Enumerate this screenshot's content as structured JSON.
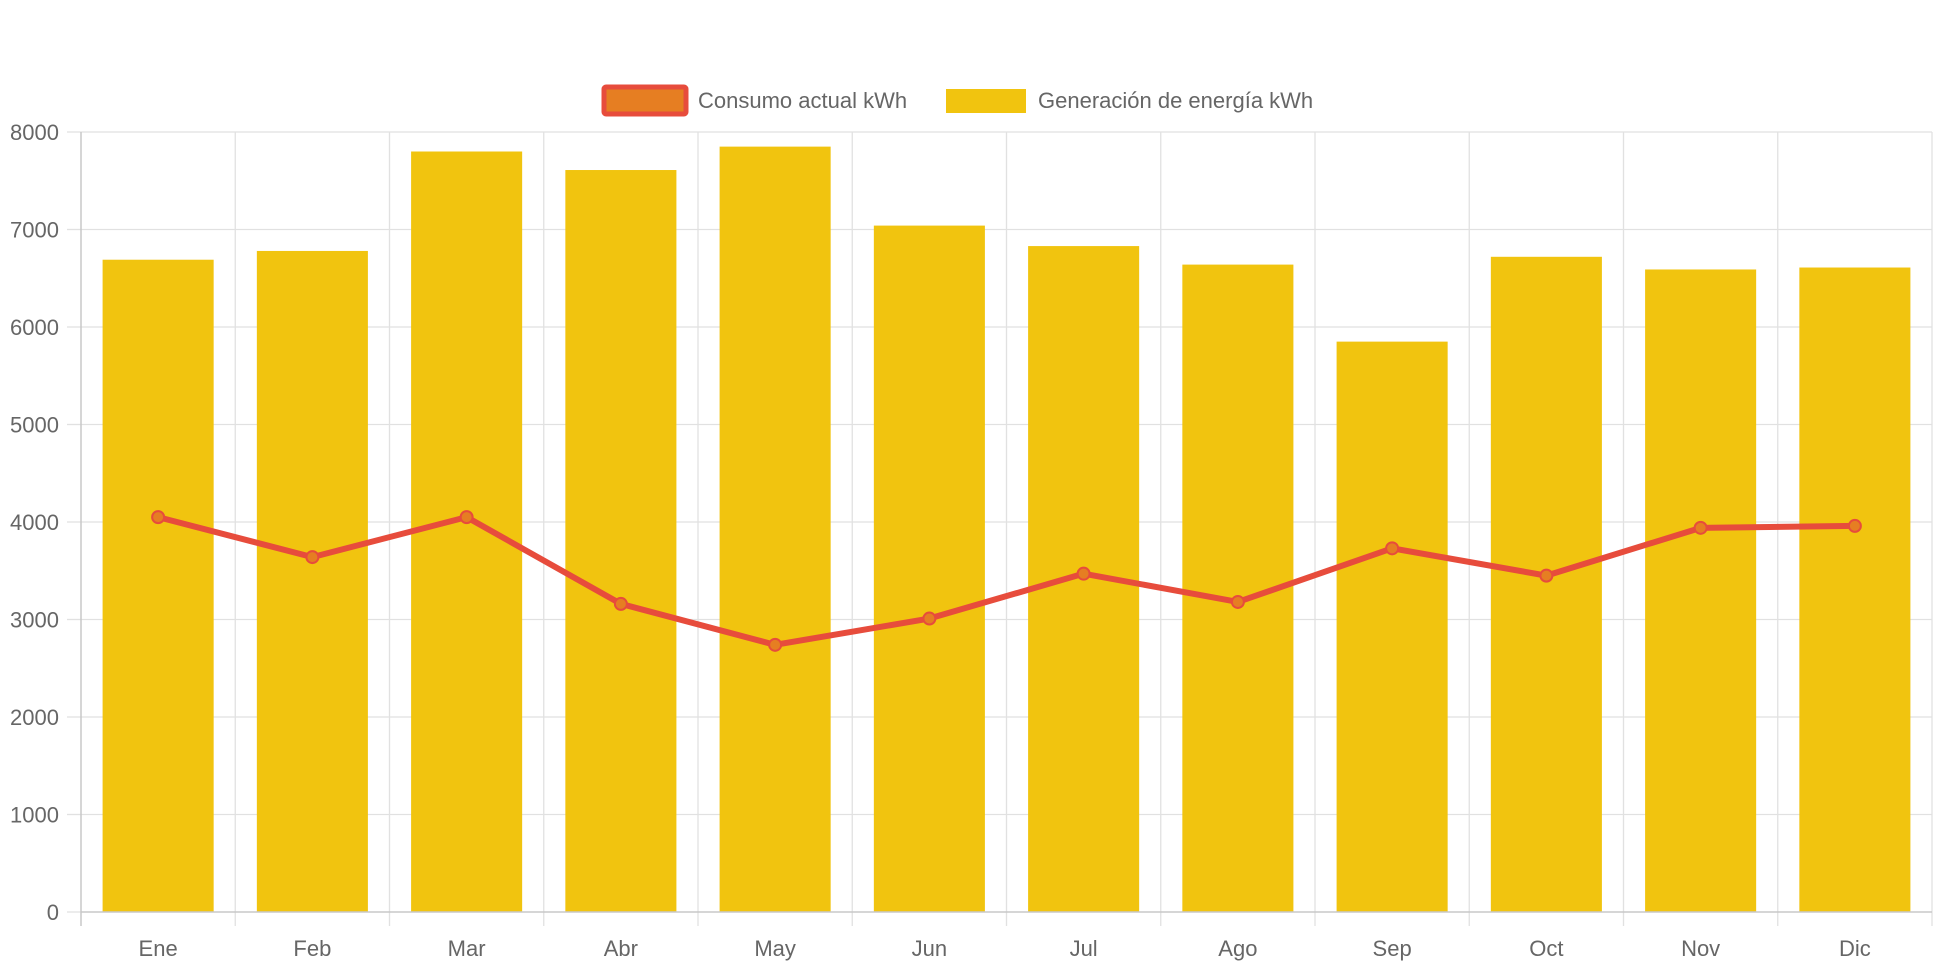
{
  "chart_data": {
    "type": "bar",
    "categories": [
      "Ene",
      "Feb",
      "Mar",
      "Abr",
      "May",
      "Jun",
      "Jul",
      "Ago",
      "Sep",
      "Oct",
      "Nov",
      "Dic"
    ],
    "series": [
      {
        "name": "Consumo actual kWh",
        "render": "line",
        "color": "#e74c3c",
        "point_color": "#e67e22",
        "values": [
          4050,
          3640,
          4050,
          3160,
          2740,
          3010,
          3470,
          3180,
          3730,
          3450,
          3940,
          3960
        ]
      },
      {
        "name": "Generación de energía kWh",
        "render": "bar",
        "color": "#f1c40f",
        "values": [
          6690,
          6780,
          7800,
          7610,
          7850,
          7040,
          6830,
          6640,
          5850,
          6720,
          6590,
          6610
        ]
      }
    ],
    "ylim": [
      0,
      8000
    ],
    "y_ticks": [
      0,
      1000,
      2000,
      3000,
      4000,
      5000,
      6000,
      7000,
      8000
    ],
    "grid": true,
    "legend_position": "top-center",
    "title": "",
    "xlabel": "",
    "ylabel": ""
  }
}
